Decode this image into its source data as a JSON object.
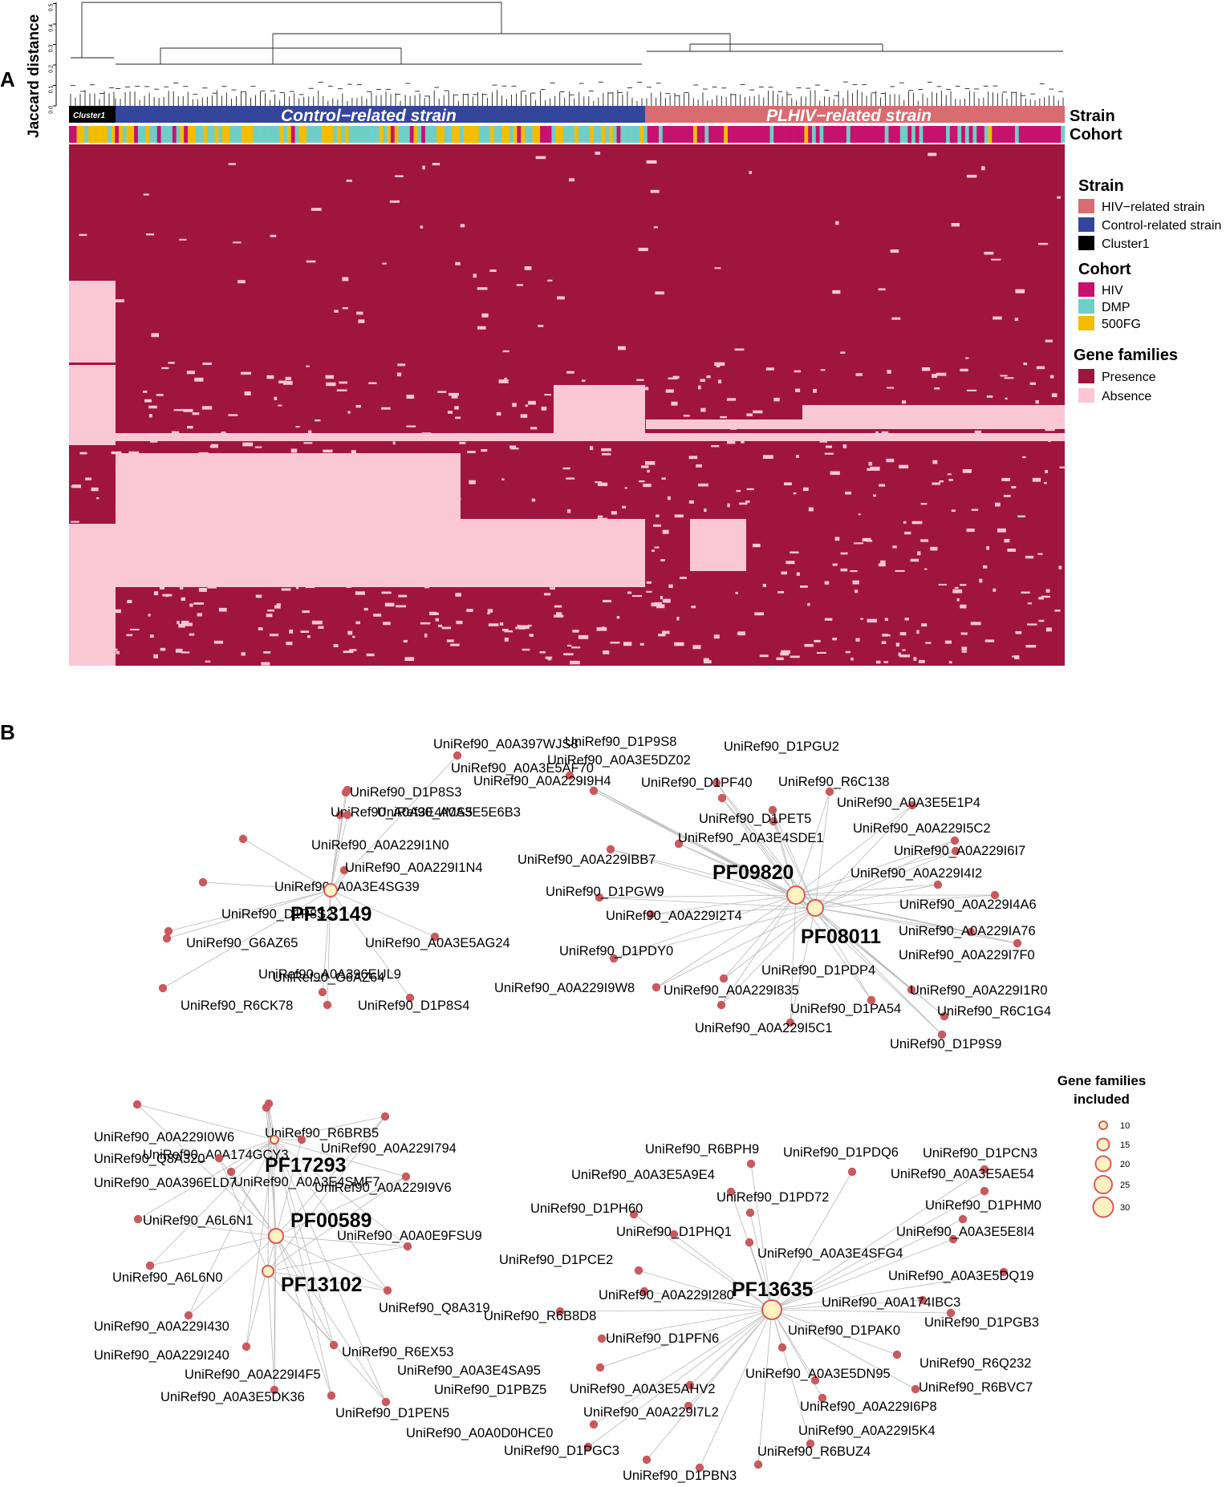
{
  "panelA": {
    "label": "A",
    "dendrogram": {
      "ylabel": "Jaccard distance",
      "ticks": [
        "0.0",
        "0.1",
        "0.2",
        "0.3",
        "0.4",
        "0.5"
      ]
    },
    "strain_bar": {
      "label": "Strain",
      "segments": [
        "Cluster1",
        "Control−related strain",
        "PLHIV−related strain"
      ]
    },
    "cohort_bar": {
      "label": "Cohort"
    },
    "legend": {
      "strain_title": "Strain",
      "strain_items": [
        {
          "label": "HIV−related strain",
          "color": "#D86C70"
        },
        {
          "label": "Control-related strain",
          "color": "#33469B"
        },
        {
          "label": "Cluster1",
          "color": "#000000"
        }
      ],
      "cohort_title": "Cohort",
      "cohort_items": [
        {
          "label": "HIV",
          "color": "#C8106F"
        },
        {
          "label": "DMP",
          "color": "#6FCEC7"
        },
        {
          "label": "500FG",
          "color": "#F5BD00"
        }
      ],
      "gf_title": "Gene families",
      "gf_items": [
        {
          "label": "Presence",
          "color": "#A0153E"
        },
        {
          "label": "Absence",
          "color": "#FAC8D5"
        }
      ]
    }
  },
  "panelB": {
    "label": "B",
    "hubs": [
      "PF13149",
      "PF09820",
      "PF08011",
      "PF17293",
      "PF00589",
      "PF13102",
      "PF13635"
    ],
    "nodes": {
      "c1": [
        "UniRef90_A0A397WJS8",
        "UniRef90_A0A3E5AF70",
        "UniRef90_D1P8S3",
        "UniRef90_A0A3E4IMS5",
        "UniRef90_A0A3E5E6B3",
        "UniRef90_A0A229I1N0",
        "UniRef90_A0A229I1N4",
        "UniRef90_A0A3E4SG39",
        "UniRef90_D1P8S2",
        "UniRef90_G6AZ65",
        "UniRef90_A0A3E5AG24",
        "UniRef90_A0A396EUL9",
        "UniRef90_G6AZ64",
        "UniRef90_R6CK78",
        "UniRef90_D1P8S4"
      ],
      "c2": [
        "UniRef90_D1P9S8",
        "UniRef90_D1PGU2",
        "UniRef90_A0A3E5DZ02",
        "UniRef90_A0A229I9H4",
        "UniRef90_D1PF40",
        "UniRef90_R6C138",
        "UniRef90_A0A3E5E1P4",
        "UniRef90_D1PET5",
        "UniRef90_A0A229I5C2",
        "UniRef90_A0A3E4SDE1",
        "UniRef90_A0A229I6I7",
        "UniRef90_A0A229IBB7",
        "UniRef90_A0A229I4I2",
        "UniRef90_D1PGW9",
        "UniRef90_A0A229I4A6",
        "UniRef90_A0A229I2T4",
        "UniRef90_A0A229IA76",
        "UniRef90_D1PDY0",
        "UniRef90_A0A229I7F0",
        "UniRef90_D1PDP4",
        "UniRef90_A0A229I9W8",
        "UniRef90_A0A229I835",
        "UniRef90_A0A229I1R0",
        "UniRef90_D1PA54",
        "UniRef90_R6C1G4",
        "UniRef90_A0A229I5C1",
        "UniRef90_D1P9S9"
      ],
      "c3": [
        "UniRef90_A0A229I0W6",
        "UniRef90_R6BRB5",
        "UniRef90_A0A174GCY3",
        "UniRef90_A0A229I794",
        "UniRef90_A0A3E4SMF7",
        "UniRef90_Q8A320",
        "UniRef90_A0A396ELD7",
        "UniRef90_A0A229I9V6",
        "UniRef90_A6L6N1",
        "UniRef90_A0A0E9FSU9",
        "UniRef90_A6L6N0",
        "UniRef90_Q8A319",
        "UniRef90_A0A229I430",
        "UniRef90_R6EX53",
        "UniRef90_A0A229I240",
        "UniRef90_A0A229I4F5",
        "UniRef90_A0A3E5DK36",
        "UniRef90_D1PEN5"
      ],
      "c4": [
        "UniRef90_R6BPH9",
        "UniRef90_D1PDQ6",
        "UniRef90_D1PCN3",
        "UniRef90_A0A3E5A9E4",
        "UniRef90_A0A3E5AE54",
        "UniRef90_D1PD72",
        "UniRef90_D1PH60",
        "UniRef90_D1PHM0",
        "UniRef90_D1PHQ1",
        "UniRef90_A0A3E5E8I4",
        "UniRef90_A0A3E4SFG4",
        "UniRef90_D1PCE2",
        "UniRef90_A0A3E5DQ19",
        "UniRef90_A0A229I280",
        "UniRef90_A0A174IBC3",
        "UniRef90_R6B8D8",
        "UniRef90_D1PGB3",
        "UniRef90_D1PAK0",
        "UniRef90_D1PFN6",
        "UniRef90_R6Q232",
        "UniRef90_A0A3E4SA95",
        "UniRef90_A0A3E5DN95",
        "UniRef90_R6BVC7",
        "UniRef90_D1PBZ5",
        "UniRef90_A0A3E5AHV2",
        "UniRef90_A0A229I6P8",
        "UniRef90_A0A229I7L2",
        "UniRef90_A0A229I5K4",
        "UniRef90_A0A0D0HCE0",
        "UniRef90_D1PGC3",
        "UniRef90_R6BUZ4",
        "UniRef90_D1PBN3"
      ]
    },
    "size_legend": {
      "title_line1": "Gene families",
      "title_line2": "included",
      "values": [
        "10",
        "15",
        "20",
        "25",
        "30"
      ]
    },
    "colors": {
      "node": "#C9595F",
      "hub_fill": "#FFF2C2",
      "hub_stroke": "#D95A5A",
      "edge": "#B8B8B8"
    }
  }
}
